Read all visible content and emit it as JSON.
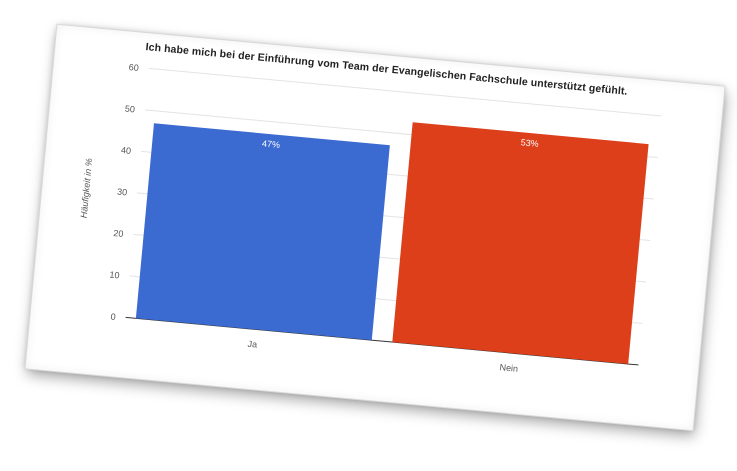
{
  "chart_data": {
    "type": "bar",
    "title": "Ich habe mich bei der Einführung vom Team der Evangelischen Fachschule unterstützt gefühlt.",
    "ylabel": "Häufigkeit in %",
    "xlabel": "",
    "categories": [
      "Ja",
      "Nein"
    ],
    "values": [
      47,
      53
    ],
    "data_labels": [
      "47%",
      "53%"
    ],
    "bar_colors": [
      "#3b6ad1",
      "#dc3f1a"
    ],
    "ylim": [
      0,
      60
    ],
    "yticks": [
      "0",
      "10",
      "20",
      "30",
      "40",
      "50",
      "60"
    ],
    "grid": true,
    "legend": "none"
  }
}
